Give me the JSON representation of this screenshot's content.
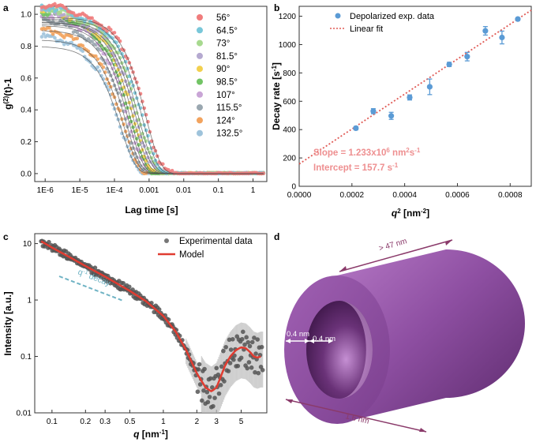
{
  "chart_data": [
    {
      "panel": "a",
      "type": "scatter",
      "xscale": "log",
      "xlim": [
        5e-07,
        2.5
      ],
      "ylim": [
        -0.05,
        1.05
      ],
      "xlabel": "Lag time [s]",
      "ylabel": "g(2)(t)-1",
      "xticks": [
        1e-06,
        1e-05,
        0.0001,
        0.001,
        0.01,
        0.1,
        1
      ],
      "xticklabels": [
        "1E-6",
        "1E-5",
        "1E-4",
        "0.001",
        "0.01",
        "0.1",
        "1"
      ],
      "yticks": [
        0.0,
        0.2,
        0.4,
        0.6,
        0.8,
        1.0
      ],
      "yticklabels": [
        "0.0",
        "0.2",
        "0.4",
        "0.6",
        "0.8",
        "1.0"
      ],
      "legend_position": "top-right",
      "series": [
        {
          "name": "56°",
          "color": "#f07c7c",
          "amplitude": 0.98,
          "tau": 0.0016
        },
        {
          "name": "64.5°",
          "color": "#79c7d9",
          "amplitude": 0.97,
          "tau": 0.00125
        },
        {
          "name": "73°",
          "color": "#a7d98f",
          "amplitude": 0.96,
          "tau": 0.001
        },
        {
          "name": "81.5°",
          "color": "#b5a9d0",
          "amplitude": 0.95,
          "tau": 0.00085
        },
        {
          "name": "90°",
          "color": "#f2d04e",
          "amplitude": 0.95,
          "tau": 0.0007
        },
        {
          "name": "98.5°",
          "color": "#72c465",
          "amplitude": 0.94,
          "tau": 0.00058
        },
        {
          "name": "107°",
          "color": "#c9a5d6",
          "amplitude": 0.93,
          "tau": 0.0005
        },
        {
          "name": "115.5°",
          "color": "#9aa7b0",
          "amplitude": 0.9,
          "tau": 0.00042
        },
        {
          "name": "124°",
          "color": "#f2a35e",
          "amplitude": 0.84,
          "tau": 0.00036
        },
        {
          "name": "132.5°",
          "color": "#9ec3db",
          "amplitude": 0.8,
          "tau": 0.0003
        }
      ]
    },
    {
      "panel": "b",
      "type": "scatter",
      "xlabel": "q2 [nm-2]",
      "ylabel": "Decay rate [s-1]",
      "xlim": [
        0,
        0.00088
      ],
      "ylim": [
        0,
        1270
      ],
      "xticks": [
        0,
        0.0002,
        0.0004,
        0.0006,
        0.0008
      ],
      "xticklabels": [
        "0.0000",
        "0.0002",
        "0.0004",
        "0.0006",
        "0.0008"
      ],
      "yticks": [
        0,
        200,
        400,
        600,
        800,
        1000,
        1200
      ],
      "yticklabels": [
        "0",
        "200",
        "400",
        "600",
        "800",
        "1000",
        "1200"
      ],
      "legend": [
        "Depolarized exp. data",
        "Linear fit"
      ],
      "legend_position": "top-left",
      "x": [
        0.000215,
        0.000281,
        0.000349,
        0.000419,
        0.000495,
        0.000569,
        0.000637,
        0.000706,
        0.000769,
        0.000829
      ],
      "y": [
        410,
        530,
        497,
        627,
        702,
        860,
        915,
        1097,
        1050,
        1180
      ],
      "yerr": [
        12,
        18,
        25,
        18,
        55,
        15,
        30,
        30,
        45,
        10
      ],
      "fit": {
        "slope": 1233000,
        "intercept": 157.7
      },
      "colors": {
        "data": "#5b9bd5",
        "fit": "#e05a55",
        "annotation": "#ee8f90"
      },
      "annotation_slope": "Slope = 1.233x10",
      "annotation_slope_exp": "6",
      "annotation_slope_unit": " nm",
      "annotation_slope_unit_exp": "2",
      "annotation_slope_unit2": "s",
      "annotation_slope_unit2_exp": "-1",
      "annotation_intercept": "Intercept = 157.7 s",
      "annotation_intercept_exp": "-1"
    },
    {
      "panel": "c",
      "type": "scatter",
      "xscale": "log",
      "yscale": "log",
      "xlim": [
        0.07,
        8.5
      ],
      "ylim": [
        0.01,
        15
      ],
      "xlabel": "q [nm-1]",
      "ylabel": "Intensity [a.u.]",
      "xticks": [
        0.1,
        0.2,
        0.3,
        0.5,
        1,
        2,
        3,
        5
      ],
      "xticklabels": [
        "0.1",
        "0.2",
        "0.3",
        "0.5",
        "1",
        "2",
        "3",
        "5"
      ],
      "yticks": [
        0.01,
        0.1,
        1,
        10
      ],
      "yticklabels": [
        "0.01",
        "0.1",
        "1",
        "10"
      ],
      "legend": [
        "Experimental data",
        "Model"
      ],
      "legend_position": "top-right",
      "annotation": "q",
      "annotation_exp": "-1",
      "annotation_suffix": " decay",
      "colors": {
        "data": "#555555",
        "model": "#e03c31",
        "decay": "#6fb3c4"
      },
      "model_x": [
        0.08,
        0.1,
        0.15,
        0.2,
        0.3,
        0.5,
        0.7,
        1.0,
        1.3,
        1.6,
        2.0,
        2.4,
        2.7,
        3.0,
        3.3,
        3.6,
        4.0,
        4.5,
        5.0,
        5.5,
        6.0,
        6.5,
        7.0,
        7.5
      ],
      "model_y": [
        11,
        8.5,
        5.5,
        4.0,
        2.6,
        1.45,
        0.95,
        0.52,
        0.27,
        0.13,
        0.05,
        0.028,
        0.024,
        0.028,
        0.045,
        0.07,
        0.1,
        0.13,
        0.145,
        0.14,
        0.12,
        0.1,
        0.095,
        0.1
      ]
    }
  ],
  "panels": {
    "a": "a",
    "b": "b",
    "c": "c",
    "d": "d"
  },
  "diagram_d": {
    "length_label": "> 47 nm",
    "wall_label_1": "0.4 nm",
    "wall_label_2": "0.4 nm",
    "diameter_label": "1.6 nm",
    "colors": {
      "tube": "#8a4a9b",
      "tube_light": "#c58fd3",
      "inner": "#4a1f55",
      "arrow": "#8a3a6a"
    }
  }
}
